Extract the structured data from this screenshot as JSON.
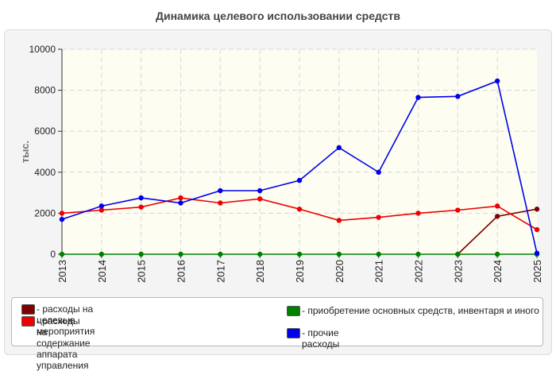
{
  "chart_data": {
    "type": "line",
    "title": "Динамика целевого использовании средств",
    "ylabel": "тыс.",
    "ylim": [
      0,
      10000
    ],
    "yticks": [
      0,
      2000,
      4000,
      6000,
      8000,
      10000
    ],
    "grid": true,
    "categories": [
      "2013",
      "2014",
      "2015",
      "2016",
      "2017",
      "2018",
      "2019",
      "2020",
      "2021",
      "2022",
      "2023",
      "2024",
      "2025"
    ],
    "series": [
      {
        "name": "- расходы на целевые мероприятия",
        "color": "#800000",
        "values": [
          null,
          null,
          null,
          null,
          null,
          null,
          null,
          null,
          null,
          null,
          0,
          1850,
          2200
        ]
      },
      {
        "name": "- расходы на содержание аппарата управления",
        "color": "#ee0000",
        "values": [
          2000,
          2150,
          2300,
          2750,
          2500,
          2700,
          2200,
          1650,
          1800,
          2000,
          2150,
          2350,
          1200
        ]
      },
      {
        "name": "- приобретение основных средств, инвентаря и иного",
        "color": "#008000",
        "values": [
          0,
          0,
          0,
          0,
          0,
          0,
          0,
          0,
          0,
          0,
          0,
          0,
          0
        ]
      },
      {
        "name": "- прочие расходы",
        "color": "#0000ee",
        "values": [
          1700,
          2350,
          2750,
          2500,
          3100,
          3100,
          3600,
          5200,
          4000,
          7650,
          7700,
          8450,
          50
        ]
      }
    ],
    "legend_position": "bottom"
  }
}
